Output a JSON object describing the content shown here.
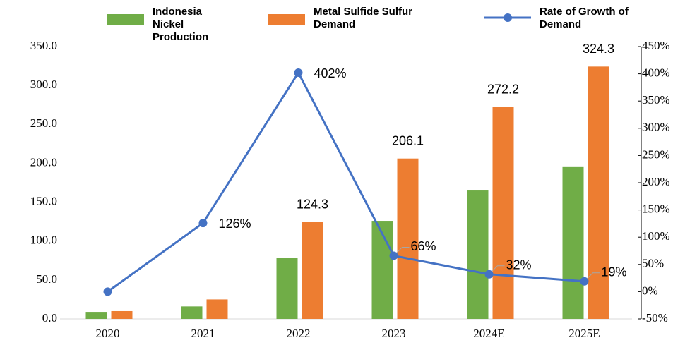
{
  "chart_data": {
    "type": "bar_line",
    "categories": [
      "2020",
      "2021",
      "2022",
      "2023",
      "2024E",
      "2025E"
    ],
    "series": [
      {
        "name": "Indonesia Nickel Production",
        "color": "#70ad47",
        "type": "bar",
        "values": [
          9,
          16,
          78,
          126,
          165,
          196
        ]
      },
      {
        "name": "Metal Sulfide Sulfur Demand",
        "color": "#ed7d31",
        "type": "bar",
        "values": [
          10,
          25,
          124.3,
          206.1,
          272.2,
          324.3
        ],
        "value_labels": [
          null,
          null,
          "124.3",
          "206.1",
          "272.2",
          "324.3"
        ]
      },
      {
        "name": "Rate of Growth of Demand",
        "color": "#4472c4",
        "type": "line",
        "axis": "y2",
        "values": [
          0,
          126,
          402,
          66,
          32,
          19
        ],
        "value_labels": [
          null,
          "126%",
          "402%",
          "66%",
          "32%",
          "19%"
        ]
      }
    ],
    "ylim": [
      0,
      350
    ],
    "yticks": [
      {
        "value": 0,
        "label": "0.0"
      },
      {
        "value": 50,
        "label": "50.0"
      },
      {
        "value": 100,
        "label": "100.0"
      },
      {
        "value": 150,
        "label": "150.0"
      },
      {
        "value": 200,
        "label": "200.0"
      },
      {
        "value": 250,
        "label": "250.0"
      },
      {
        "value": 300,
        "label": "300.0"
      },
      {
        "value": 350,
        "label": "350.0"
      }
    ],
    "y2lim": [
      -50,
      450
    ],
    "y2ticks": [
      {
        "value": -50,
        "label": "-50%"
      },
      {
        "value": 0,
        "label": "0%"
      },
      {
        "value": 50,
        "label": "50%"
      },
      {
        "value": 100,
        "label": "100%"
      },
      {
        "value": 150,
        "label": "150%"
      },
      {
        "value": 200,
        "label": "200%"
      },
      {
        "value": 250,
        "label": "250%"
      },
      {
        "value": 300,
        "label": "300%"
      },
      {
        "value": 350,
        "label": "350%"
      },
      {
        "value": 400,
        "label": "400%"
      },
      {
        "value": 450,
        "label": "450%"
      }
    ],
    "legend": "top"
  }
}
